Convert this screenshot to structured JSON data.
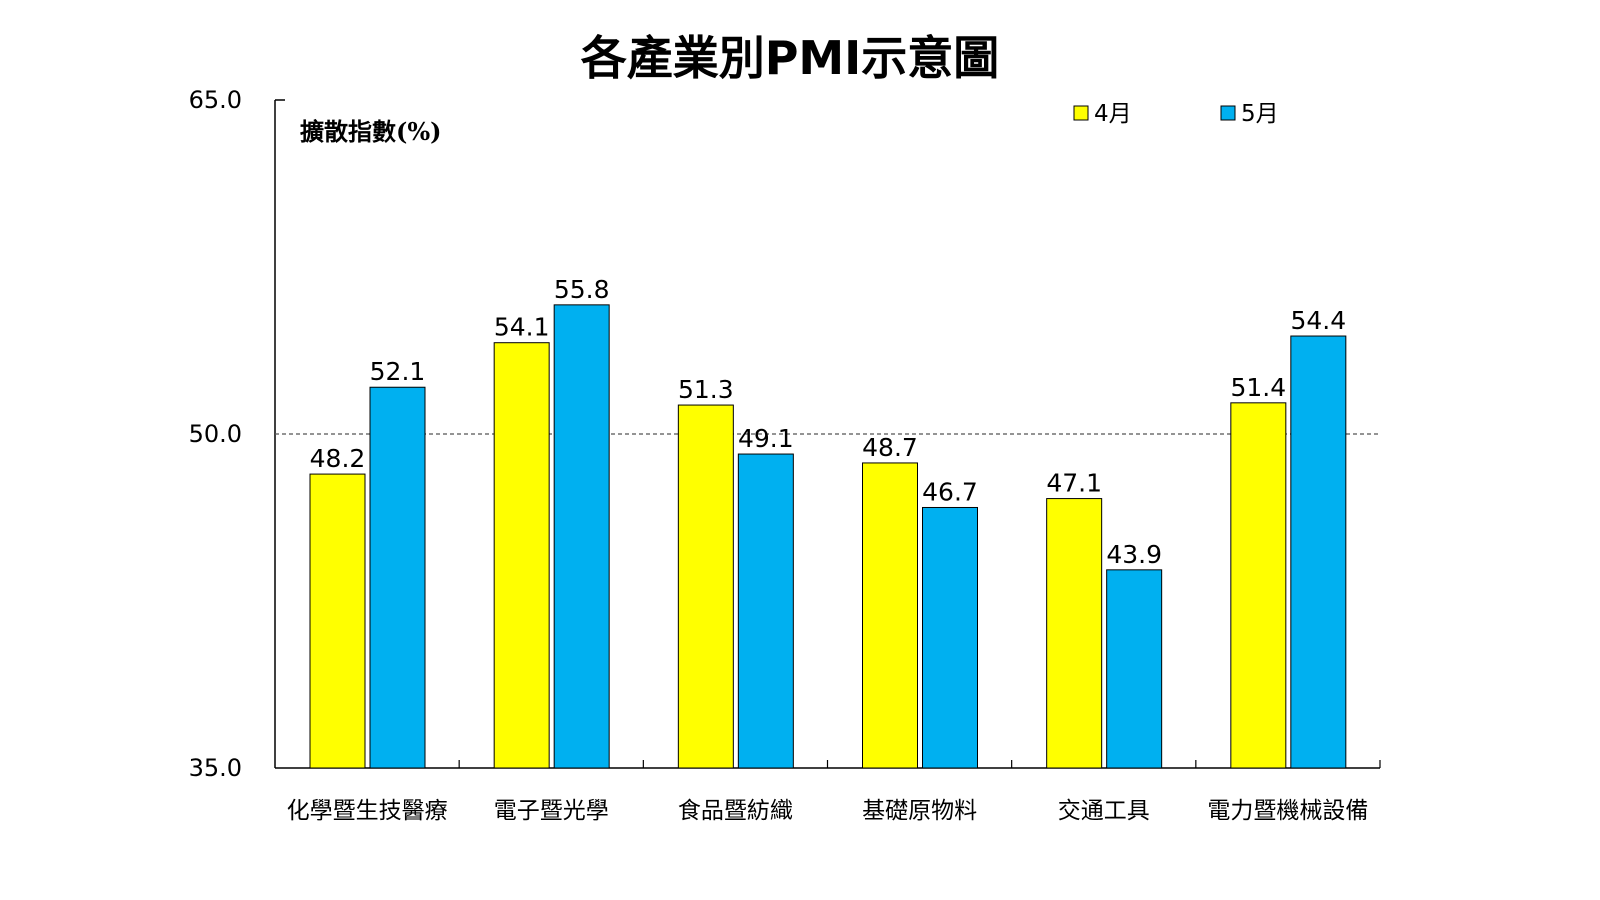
{
  "chart_data": {
    "type": "bar",
    "title": "各產業別PMI示意圖",
    "ylabel": "擴散指數(%)",
    "xlabel": "",
    "ylim": [
      35.0,
      65.0
    ],
    "yticks": [
      "35.0",
      "50.0",
      "65.0"
    ],
    "reference_line": 50.0,
    "grid": false,
    "legend_position": "top-right",
    "categories": [
      "化學暨生技醫療",
      "電子暨光學",
      "食品暨紡織",
      "基礎原物料",
      "交通工具",
      "電力暨機械設備"
    ],
    "series": [
      {
        "name": "4月",
        "color": "#FFFF00",
        "values": [
          48.2,
          54.1,
          51.3,
          48.7,
          47.1,
          51.4
        ]
      },
      {
        "name": "5月",
        "color": "#00B0F0",
        "values": [
          52.1,
          55.8,
          49.1,
          46.7,
          43.9,
          54.4
        ]
      }
    ]
  }
}
